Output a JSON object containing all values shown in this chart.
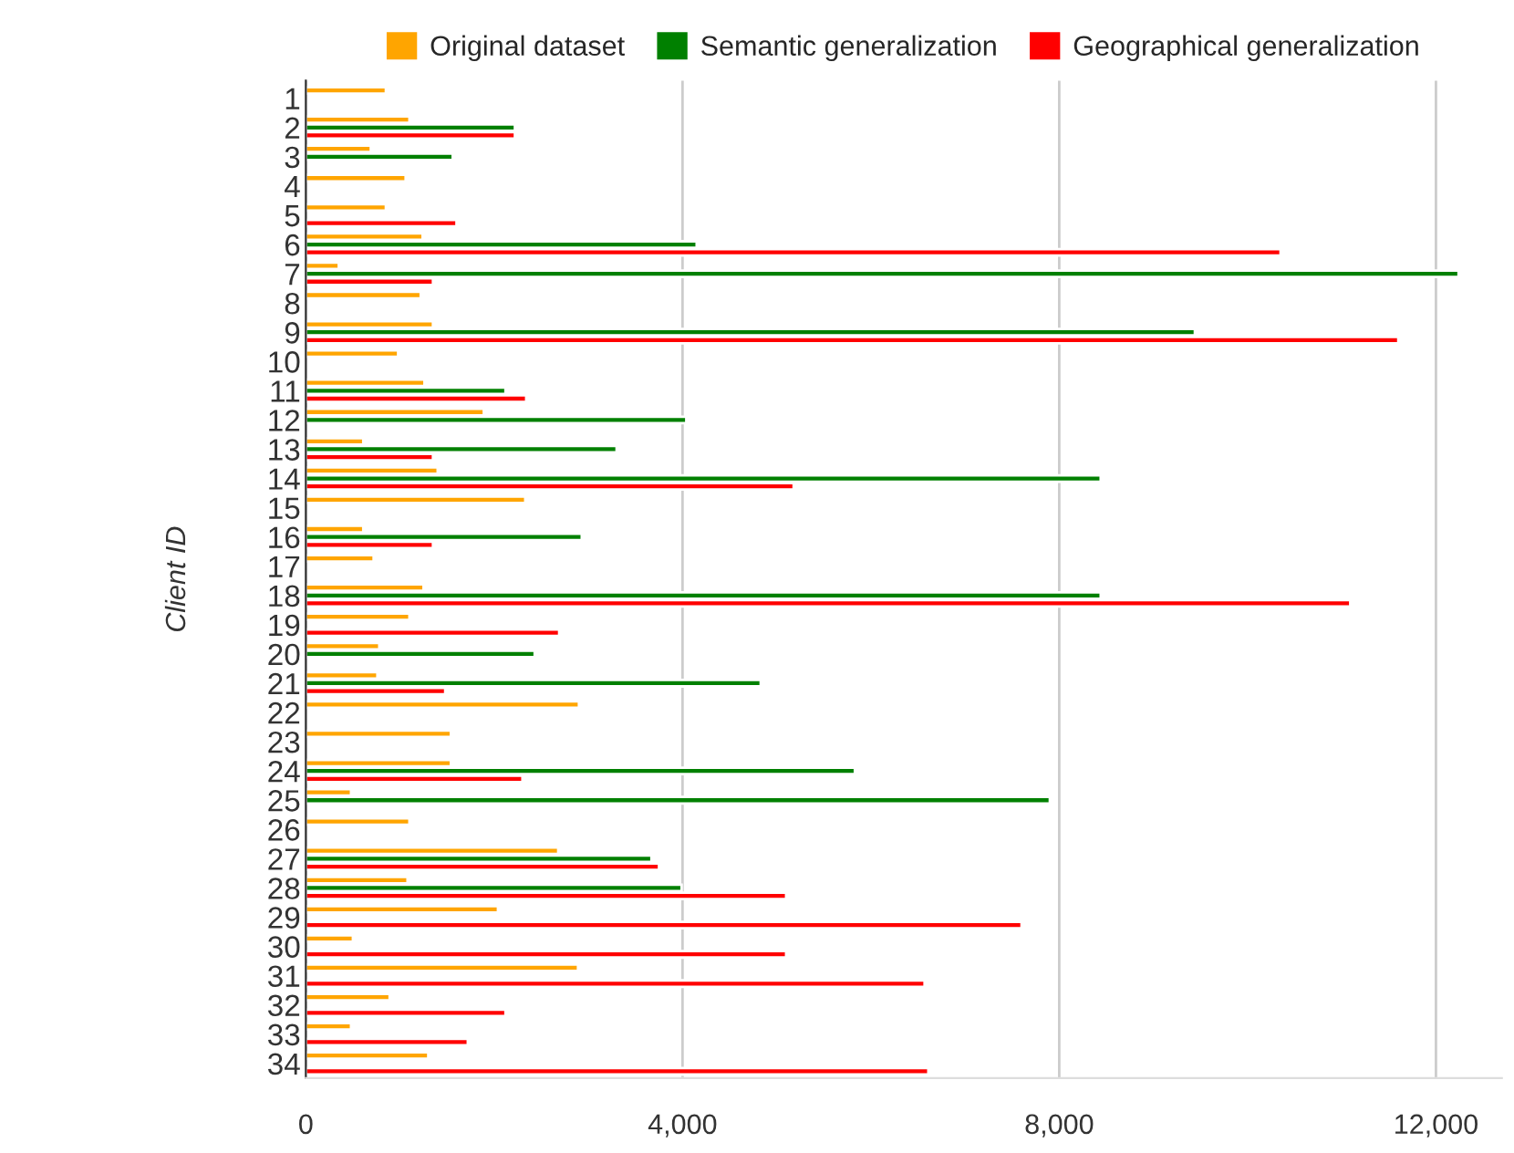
{
  "chart_data": {
    "type": "bar",
    "orientation": "horizontal",
    "ylabel": "Client ID",
    "categories": [
      "1",
      "2",
      "3",
      "4",
      "5",
      "6",
      "7",
      "8",
      "9",
      "10",
      "11",
      "12",
      "13",
      "14",
      "15",
      "16",
      "17",
      "18",
      "19",
      "20",
      "21",
      "22",
      "23",
      "24",
      "25",
      "26",
      "27",
      "28",
      "29",
      "30",
      "31",
      "32",
      "33",
      "34"
    ],
    "series": [
      {
        "name": "Original dataset",
        "color": "#ffa500",
        "values": [
          850,
          1100,
          690,
          1060,
          850,
          1240,
          350,
          1220,
          1350,
          980,
          1260,
          1890,
          610,
          1400,
          2330,
          610,
          720,
          1250,
          1100,
          780,
          760,
          2900,
          1540,
          1540,
          480,
          1100,
          2680,
          1080,
          2040,
          500,
          2890,
          890,
          480,
          1300
        ]
      },
      {
        "name": "Semantic generalization",
        "color": "#008000",
        "values": [
          null,
          2220,
          1560,
          null,
          null,
          4150,
          12240,
          null,
          9440,
          null,
          2120,
          4040,
          3300,
          8440,
          null,
          2930,
          null,
          8440,
          null,
          2430,
          4830,
          null,
          null,
          5830,
          7900,
          null,
          3670,
          3990,
          null,
          null,
          null,
          null,
          null,
          null
        ]
      },
      {
        "name": "Geographical generalization",
        "color": "#ff0000",
        "values": [
          null,
          2220,
          null,
          null,
          1600,
          10350,
          1350,
          null,
          11600,
          null,
          2340,
          null,
          1350,
          5180,
          null,
          1350,
          null,
          11090,
          2690,
          null,
          1480,
          null,
          null,
          2300,
          null,
          null,
          3750,
          5100,
          7600,
          5100,
          6570,
          2120,
          1720,
          6610
        ]
      }
    ],
    "xlim": [
      0,
      12700
    ],
    "xticks": [
      {
        "value": 0,
        "label": "0"
      },
      {
        "value": 4000,
        "label": "4,000"
      },
      {
        "value": 8000,
        "label": "8,000"
      },
      {
        "value": 12000,
        "label": "12,000"
      }
    ],
    "grid": "x",
    "legend": "top"
  }
}
